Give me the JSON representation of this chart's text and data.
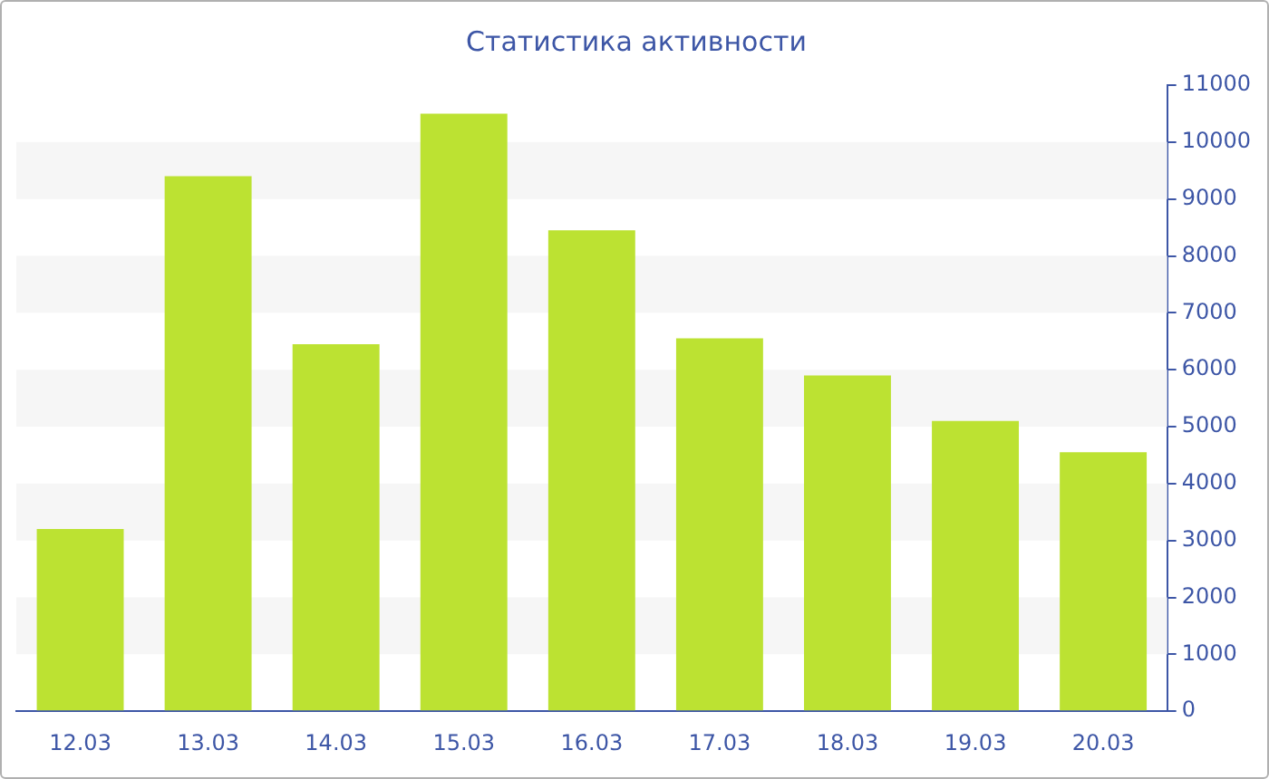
{
  "chart_data": {
    "type": "bar",
    "title": "Статистика активности",
    "categories": [
      "12.03",
      "13.03",
      "14.03",
      "15.03",
      "16.03",
      "17.03",
      "18.03",
      "19.03",
      "20.03"
    ],
    "values": [
      3200,
      9400,
      6450,
      10500,
      8450,
      6550,
      5900,
      5100,
      4550
    ],
    "color": "#bce232",
    "ylim": [
      0,
      11000
    ],
    "yticks": [
      0,
      1000,
      2000,
      3000,
      4000,
      5000,
      6000,
      7000,
      8000,
      9000,
      10000,
      11000
    ],
    "legend": false
  }
}
